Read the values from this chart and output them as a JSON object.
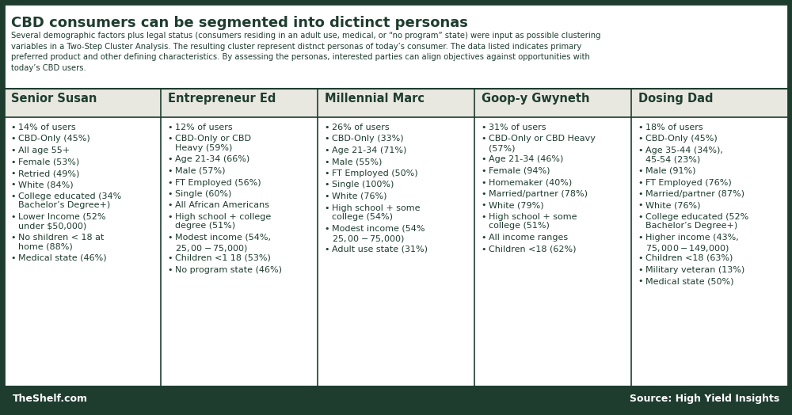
{
  "title": "CBD consumers can be segmented into dictinct personas",
  "subtitle": "Several demographic factors plus legal status (consumers residing in an adult use, medical, or “no program” state) were input as possible clustering variables in a Two-Step Cluster Analysis. The resulting cluster represent distnct personas of today’s consumer. The data listed indicates primary preferred product and other defining characteristics. By assessing the personas, interested parties can align objectives against opportunities with today’s CBD users.",
  "footer_left": "TheShelf.com",
  "footer_right": "Source: High Yield Insights",
  "dark_green": "#1e3d2f",
  "light_bg": "#f5f5ee",
  "white": "#ffffff",
  "col_header_bg": "#e8e8e0",
  "columns": [
    {
      "name": "Senior Susan",
      "items": [
        "14% of users",
        "CBD-Only (45%)",
        "All age 55+",
        "Female (53%)",
        "Retried (49%)",
        "White (84%)",
        "College educated (34%\nBachelor’s Degree+)",
        "Lower Income (52%\nunder $50,000)",
        "No shildren < 18 at\nhome (88%)",
        "Medical state (46%)"
      ]
    },
    {
      "name": "Entrepreneur Ed",
      "items": [
        "12% of users",
        "CBD-Only or CBD\nHeavy (59%)",
        "Age 21-34 (66%)",
        "Male (57%)",
        "FT Employed (56%)",
        "Single (60%)",
        "All African Americans",
        "High school + college\ndegree (51%)",
        "Modest income (54%,\n$25,00-$75,000)",
        "Children <1 18 (53%)",
        "No program state (46%)"
      ]
    },
    {
      "name": "Millennial Marc",
      "items": [
        "26% of users",
        "CBD-Only (33%)",
        "Age 21-34 (71%)",
        "Male (55%)",
        "FT Employed (50%)",
        "Single (100%)",
        "White (76%)",
        "High school + some\ncollege (54%)",
        "Modest income (54%\n$25,00-$75,000)",
        "Adult use state (31%)"
      ]
    },
    {
      "name": "Goop-y Gwyneth",
      "items": [
        "31% of users",
        "CBD-Only or CBD Heavy\n(57%)",
        "Age 21-34 (46%)",
        "Female (94%)",
        "Homemaker (40%)",
        "Married/partner (78%)",
        "White (79%)",
        "High school + some\ncollege (51%)",
        "All income ranges",
        "Children <18 (62%)"
      ]
    },
    {
      "name": "Dosing Dad",
      "items": [
        "18% of users",
        "CBD-Only (45%)",
        "Age 35-44 (34%),\n45-54 (23%)",
        "Male (91%)",
        "FT Employed (76%)",
        "Married/partner (87%)",
        "White (76%)",
        "College educated (52%\nBachelor’s Degree+)",
        "Higher income (43%,\n$75,000-$149,000)",
        "Children <18 (63%)",
        "Military veteran (13%)",
        "Medical state (50%)"
      ]
    }
  ]
}
